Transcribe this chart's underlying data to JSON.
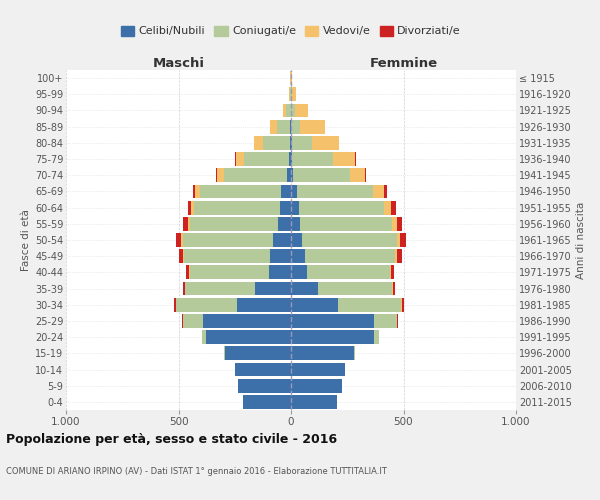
{
  "age_groups": [
    "0-4",
    "5-9",
    "10-14",
    "15-19",
    "20-24",
    "25-29",
    "30-34",
    "35-39",
    "40-44",
    "45-49",
    "50-54",
    "55-59",
    "60-64",
    "65-69",
    "70-74",
    "75-79",
    "80-84",
    "85-89",
    "90-94",
    "95-99",
    "100+"
  ],
  "birth_years": [
    "2011-2015",
    "2006-2010",
    "2001-2005",
    "1996-2000",
    "1991-1995",
    "1986-1990",
    "1981-1985",
    "1976-1980",
    "1971-1975",
    "1966-1970",
    "1961-1965",
    "1956-1960",
    "1951-1955",
    "1946-1950",
    "1941-1945",
    "1936-1940",
    "1931-1935",
    "1926-1930",
    "1921-1925",
    "1916-1920",
    "≤ 1915"
  ],
  "male": {
    "celibi": [
      215,
      235,
      250,
      295,
      380,
      390,
      240,
      160,
      100,
      95,
      80,
      60,
      50,
      45,
      20,
      10,
      5,
      3,
      1,
      0,
      0
    ],
    "coniugati": [
      0,
      0,
      0,
      5,
      15,
      90,
      270,
      310,
      350,
      380,
      400,
      390,
      380,
      360,
      280,
      200,
      120,
      60,
      20,
      5,
      2
    ],
    "vedovi": [
      0,
      0,
      0,
      0,
      0,
      0,
      2,
      2,
      3,
      5,
      10,
      10,
      15,
      20,
      30,
      35,
      40,
      30,
      15,
      5,
      1
    ],
    "divorziati": [
      0,
      0,
      0,
      0,
      2,
      5,
      10,
      10,
      12,
      20,
      20,
      20,
      15,
      10,
      5,
      3,
      1,
      0,
      0,
      0,
      0
    ]
  },
  "female": {
    "nubili": [
      205,
      225,
      240,
      280,
      370,
      370,
      210,
      120,
      70,
      60,
      50,
      40,
      35,
      25,
      10,
      5,
      3,
      2,
      1,
      0,
      0
    ],
    "coniugate": [
      0,
      0,
      0,
      5,
      20,
      100,
      280,
      330,
      370,
      400,
      420,
      410,
      380,
      340,
      250,
      180,
      90,
      40,
      15,
      4,
      1
    ],
    "vedove": [
      0,
      0,
      0,
      0,
      0,
      0,
      3,
      3,
      5,
      10,
      15,
      20,
      30,
      50,
      70,
      100,
      120,
      110,
      60,
      20,
      5
    ],
    "divorziate": [
      0,
      0,
      0,
      0,
      2,
      5,
      10,
      10,
      12,
      25,
      25,
      25,
      20,
      12,
      5,
      2,
      1,
      0,
      0,
      0,
      0
    ]
  },
  "colors": {
    "celibi": "#3d6fa8",
    "coniugati": "#b5ca9b",
    "vedovi": "#f5c26b",
    "divorziati": "#cc2222"
  },
  "legend_labels": [
    "Celibi/Nubili",
    "Coniugati/e",
    "Vedovi/e",
    "Divorziati/e"
  ],
  "xlim": 1000,
  "xlabel_left": "Maschi",
  "xlabel_right": "Femmine",
  "ylabel_left": "Fasce di età",
  "ylabel_right": "Anni di nascita",
  "title": "Popolazione per età, sesso e stato civile - 2016",
  "subtitle": "COMUNE DI ARIANO IRPINO (AV) - Dati ISTAT 1° gennaio 2016 - Elaborazione TUTTITALIA.IT",
  "bg_color": "#f0f0f0",
  "plot_bg": "#ffffff"
}
